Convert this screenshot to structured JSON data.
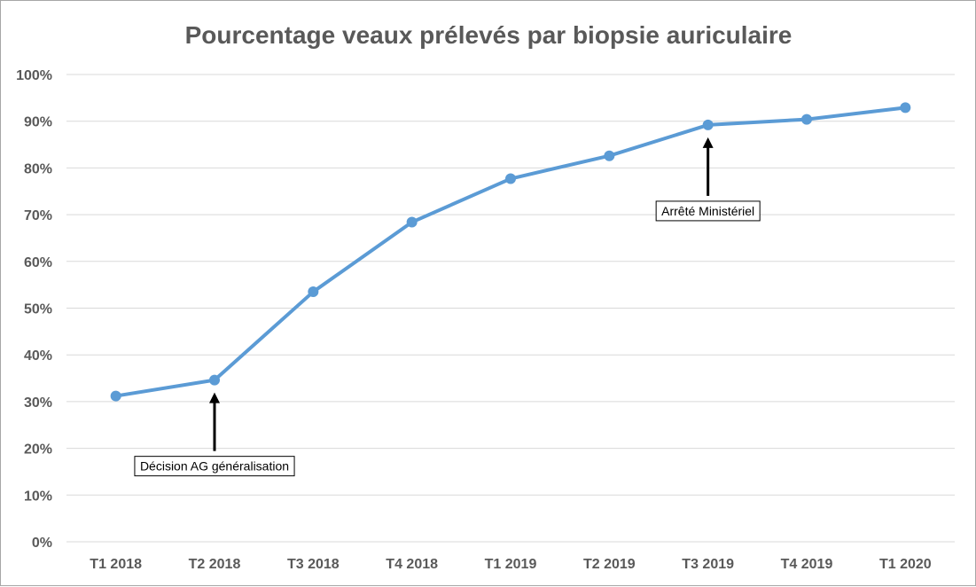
{
  "chart_data": {
    "type": "line",
    "title": "Pourcentage veaux prélevés par biopsie auriculaire",
    "xlabel": "",
    "ylabel": "",
    "categories": [
      "T1 2018",
      "T2 2018",
      "T3 2018",
      "T4 2018",
      "T1 2019",
      "T2 2019",
      "T3 2019",
      "T4 2019",
      "T1 2020"
    ],
    "series": [
      {
        "values": [
          31.2,
          34.6,
          53.5,
          68.4,
          77.7,
          82.6,
          89.2,
          90.4,
          92.9
        ],
        "color": "#5b9bd5"
      }
    ],
    "ylim": [
      0,
      100
    ],
    "yticks": [
      "0%",
      "10%",
      "20%",
      "30%",
      "40%",
      "50%",
      "60%",
      "70%",
      "80%",
      "90%",
      "100%"
    ],
    "grid": true,
    "legend": "none",
    "annotations": [
      {
        "text": "Décision AG généralisation",
        "category": "T2 2018",
        "direction": "below"
      },
      {
        "text": "Arrêté Ministériel",
        "category": "T3 2019",
        "direction": "below"
      }
    ]
  }
}
